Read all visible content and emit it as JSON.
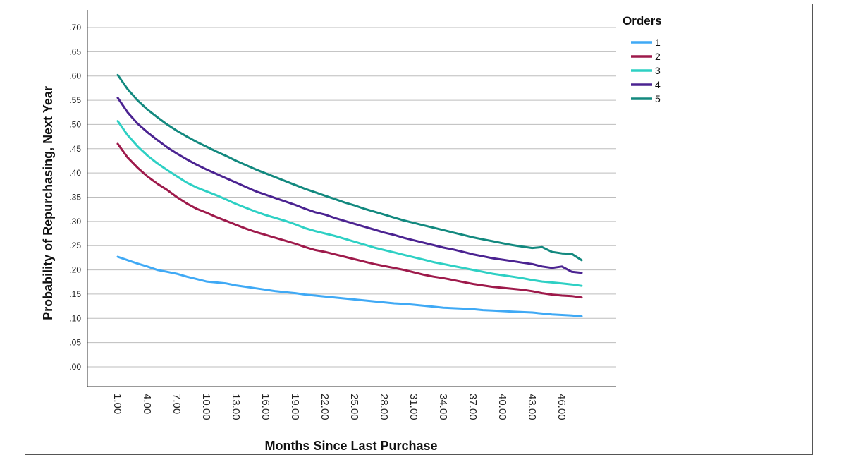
{
  "chart_data": {
    "type": "line",
    "ylabel": "Probability of Repurchasing, Next Year",
    "xlabel": "Months Since Last Purchase",
    "ylim": [
      0.0,
      0.7
    ],
    "y_ticks": [
      {
        "value": 0.7,
        "label": ".70"
      },
      {
        "value": 0.65,
        "label": ".65"
      },
      {
        "value": 0.6,
        "label": ".60"
      },
      {
        "value": 0.55,
        "label": ".55"
      },
      {
        "value": 0.5,
        "label": ".50"
      },
      {
        "value": 0.45,
        "label": ".45"
      },
      {
        "value": 0.4,
        "label": ".40"
      },
      {
        "value": 0.35,
        "label": ".35"
      },
      {
        "value": 0.3,
        "label": ".30"
      },
      {
        "value": 0.25,
        "label": ".25"
      },
      {
        "value": 0.2,
        "label": ".20"
      },
      {
        "value": 0.15,
        "label": ".15"
      },
      {
        "value": 0.1,
        "label": ".10"
      },
      {
        "value": 0.05,
        "label": ".05"
      },
      {
        "value": 0.0,
        "label": ".00"
      }
    ],
    "x_ticks": [
      {
        "value": 1,
        "label": "1.00"
      },
      {
        "value": 4,
        "label": "4.00"
      },
      {
        "value": 7,
        "label": "7.00"
      },
      {
        "value": 10,
        "label": "10.00"
      },
      {
        "value": 13,
        "label": "13.00"
      },
      {
        "value": 16,
        "label": "16.00"
      },
      {
        "value": 19,
        "label": "19.00"
      },
      {
        "value": 22,
        "label": "22.00"
      },
      {
        "value": 25,
        "label": "25.00"
      },
      {
        "value": 28,
        "label": "28.00"
      },
      {
        "value": 31,
        "label": "31.00"
      },
      {
        "value": 34,
        "label": "34.00"
      },
      {
        "value": 37,
        "label": "37.00"
      },
      {
        "value": 40,
        "label": "40.00"
      },
      {
        "value": 43,
        "label": "43.00"
      },
      {
        "value": 46,
        "label": "46.00"
      }
    ],
    "x": [
      1,
      2,
      3,
      4,
      5,
      6,
      7,
      8,
      9,
      10,
      11,
      12,
      13,
      14,
      15,
      16,
      17,
      18,
      19,
      20,
      21,
      22,
      23,
      24,
      25,
      26,
      27,
      28,
      29,
      30,
      31,
      32,
      33,
      34,
      35,
      36,
      37,
      38,
      39,
      40,
      41,
      42,
      43,
      44,
      45,
      46,
      47,
      48
    ],
    "grid": true,
    "legend_position": "top-right",
    "legend_title": "Orders",
    "series": [
      {
        "name": "1",
        "color": "#3fa9f5",
        "values": [
          0.227,
          0.22,
          0.213,
          0.207,
          0.2,
          0.196,
          0.192,
          0.186,
          0.181,
          0.176,
          0.174,
          0.172,
          0.168,
          0.165,
          0.162,
          0.159,
          0.156,
          0.154,
          0.152,
          0.149,
          0.147,
          0.145,
          0.143,
          0.141,
          0.139,
          0.137,
          0.135,
          0.133,
          0.131,
          0.13,
          0.128,
          0.126,
          0.124,
          0.122,
          0.121,
          0.12,
          0.119,
          0.117,
          0.116,
          0.115,
          0.114,
          0.113,
          0.112,
          0.11,
          0.108,
          0.107,
          0.106,
          0.104
        ]
      },
      {
        "name": "2",
        "color": "#9e1a4b",
        "values": [
          0.46,
          0.432,
          0.411,
          0.393,
          0.378,
          0.365,
          0.35,
          0.337,
          0.326,
          0.318,
          0.309,
          0.301,
          0.293,
          0.285,
          0.278,
          0.272,
          0.266,
          0.26,
          0.254,
          0.247,
          0.241,
          0.237,
          0.232,
          0.227,
          0.222,
          0.217,
          0.212,
          0.208,
          0.204,
          0.2,
          0.195,
          0.19,
          0.186,
          0.183,
          0.179,
          0.175,
          0.171,
          0.168,
          0.165,
          0.163,
          0.161,
          0.159,
          0.156,
          0.152,
          0.149,
          0.147,
          0.146,
          0.143
        ]
      },
      {
        "name": "3",
        "color": "#2ed0c4",
        "values": [
          0.507,
          0.478,
          0.455,
          0.436,
          0.42,
          0.406,
          0.393,
          0.38,
          0.37,
          0.362,
          0.354,
          0.345,
          0.336,
          0.328,
          0.32,
          0.313,
          0.307,
          0.301,
          0.294,
          0.286,
          0.28,
          0.275,
          0.27,
          0.264,
          0.258,
          0.252,
          0.246,
          0.241,
          0.236,
          0.231,
          0.226,
          0.221,
          0.216,
          0.212,
          0.208,
          0.204,
          0.2,
          0.196,
          0.192,
          0.189,
          0.186,
          0.183,
          0.179,
          0.176,
          0.174,
          0.172,
          0.17,
          0.167
        ]
      },
      {
        "name": "4",
        "color": "#4b2391",
        "values": [
          0.555,
          0.525,
          0.502,
          0.484,
          0.468,
          0.453,
          0.44,
          0.428,
          0.417,
          0.407,
          0.398,
          0.389,
          0.38,
          0.371,
          0.362,
          0.355,
          0.348,
          0.341,
          0.334,
          0.326,
          0.319,
          0.314,
          0.307,
          0.301,
          0.295,
          0.289,
          0.283,
          0.277,
          0.272,
          0.266,
          0.261,
          0.256,
          0.251,
          0.246,
          0.242,
          0.237,
          0.232,
          0.228,
          0.224,
          0.221,
          0.218,
          0.215,
          0.212,
          0.207,
          0.204,
          0.207,
          0.196,
          0.194
        ]
      },
      {
        "name": "5",
        "color": "#13897f",
        "values": [
          0.602,
          0.573,
          0.55,
          0.531,
          0.515,
          0.5,
          0.487,
          0.475,
          0.464,
          0.454,
          0.444,
          0.435,
          0.425,
          0.416,
          0.407,
          0.399,
          0.391,
          0.383,
          0.375,
          0.367,
          0.36,
          0.353,
          0.346,
          0.339,
          0.333,
          0.326,
          0.32,
          0.314,
          0.308,
          0.302,
          0.297,
          0.292,
          0.287,
          0.282,
          0.277,
          0.272,
          0.267,
          0.263,
          0.259,
          0.255,
          0.251,
          0.248,
          0.245,
          0.247,
          0.237,
          0.234,
          0.233,
          0.22
        ]
      }
    ]
  }
}
